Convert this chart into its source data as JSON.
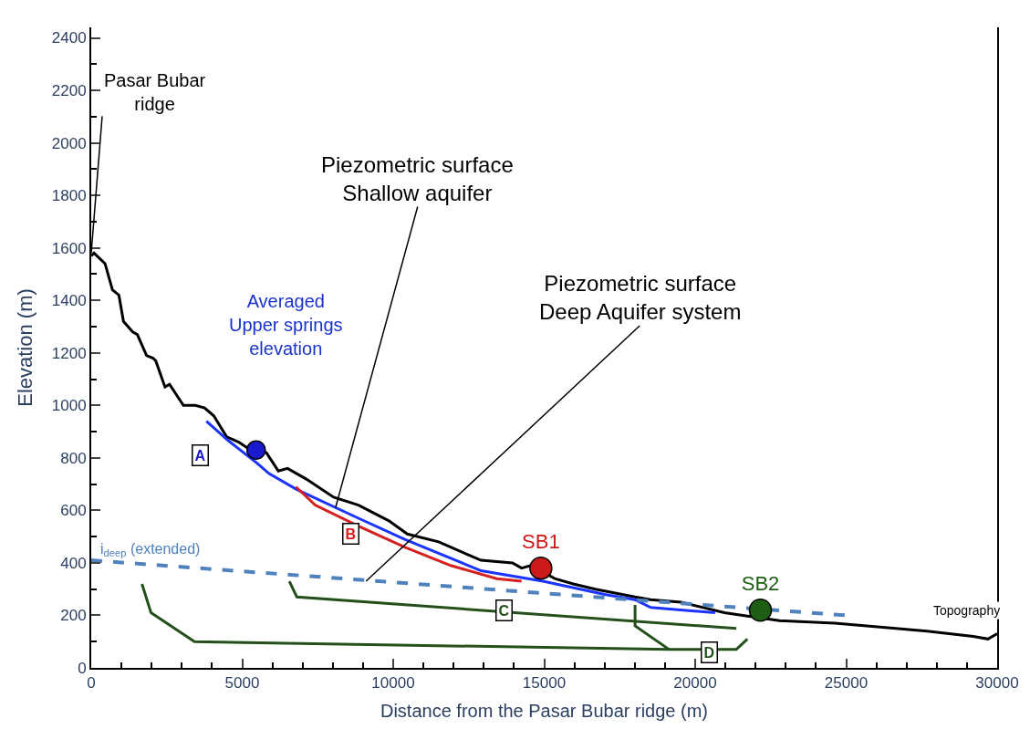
{
  "chart_data": {
    "type": "line",
    "xlabel": "Distance from the Pasar Bubar ridge (m)",
    "ylabel": "Elevation (m)",
    "xlim": [
      0,
      30000
    ],
    "xticks": [
      0,
      5000,
      10000,
      15000,
      20000,
      25000,
      30000
    ],
    "ylim": [
      0,
      2440
    ],
    "yticks": [
      0,
      200,
      400,
      600,
      800,
      1000,
      1200,
      1400,
      1600,
      1800,
      2000,
      2200,
      2400
    ],
    "legend": false,
    "line_style": "solid",
    "marker": "none",
    "series": [
      {
        "color": "#000000",
        "x": [
          0,
          92,
          458,
          702,
          916,
          1068,
          1373,
          1526,
          1831,
          2045,
          2136,
          2442,
          2594,
          3052,
          3449,
          3754,
          4059,
          4486,
          4883,
          5280,
          5799,
          6196,
          6501,
          7111,
          8027,
          8851,
          9858,
          10468,
          11506,
          12300,
          12910,
          13948,
          14253,
          14558,
          15352,
          15962,
          16694,
          18007,
          18525,
          19533,
          20967,
          21578,
          22798,
          24630,
          26644,
          27682,
          29208,
          29696,
          30000
        ],
        "values": [
          1570,
          1580,
          1540,
          1440,
          1420,
          1320,
          1280,
          1270,
          1190,
          1180,
          1170,
          1070,
          1080,
          1000,
          1000,
          990,
          960,
          880,
          860,
          830,
          820,
          750,
          760,
          720,
          650,
          620,
          560,
          510,
          480,
          440,
          410,
          400,
          380,
          390,
          340,
          320,
          300,
          270,
          260,
          250,
          210,
          200,
          180,
          170,
          150,
          140,
          120,
          110,
          130
        ]
      },
      {
        "color": "#1a33ff",
        "x": [
          3815,
          4490,
          5490,
          5890,
          6800,
          8850,
          10380,
          12910,
          14960,
          17000,
          18000,
          18530,
          20660
        ],
        "values": [
          940,
          870,
          780,
          740,
          680,
          570,
          490,
          370,
          330,
          280,
          260,
          230,
          210
        ]
      },
      {
        "color": "#d42020",
        "x": [
          6775,
          7416,
          8851,
          10377,
          11903,
          13430,
          14250
        ],
        "values": [
          690,
          620,
          540,
          460,
          390,
          340,
          330
        ]
      },
      {
        "color": "#4f81bd",
        "line_style": "dashed",
        "x": [
          0,
          25030
        ],
        "values": [
          410,
          200
        ]
      },
      {
        "color": "#23501a",
        "x": [
          6560,
          6810,
          21360
        ],
        "values": [
          330,
          270,
          150
        ]
      },
      {
        "color": "#23501a",
        "x": [
          1680,
          1980,
          3420,
          19140,
          21360,
          21730
        ],
        "values": [
          320,
          210,
          100,
          70,
          70,
          110
        ]
      },
      {
        "color": "#23501a",
        "x": [
          18010,
          18010,
          19140
        ],
        "values": [
          240,
          160,
          70
        ]
      },
      {
        "type": "scatter",
        "marker": "circle",
        "color": "#1a1acc",
        "x": [
          5460
        ],
        "values": [
          830
        ]
      },
      {
        "type": "scatter",
        "marker": "circle",
        "name": "SB1",
        "color": "#cc1a1a",
        "x": [
          14890
        ],
        "values": [
          380
        ]
      },
      {
        "type": "scatter",
        "marker": "circle",
        "name": "SB2",
        "color": "#1e5e14",
        "x": [
          22160
        ],
        "values": [
          220
        ]
      }
    ],
    "annotations": [
      {
        "text": "Pasar Bubar\nridge",
        "x": 0,
        "y": 1580
      },
      {
        "text": "Piezometric surface\nShallow aquifer",
        "x": 8090,
        "y": 610
      },
      {
        "text": "Piezometric surface\nDeep Aquifer system",
        "x": 9100,
        "y": 330
      },
      "Averaged\nUpper springs\nelevation",
      {
        "text": "i$_{deep}$ (extended)",
        "x": 0,
        "y": 410
      },
      {
        "text": "Topography",
        "x": 29000,
        "y": 130
      },
      {
        "text": "A",
        "x": 3600,
        "y": 810
      },
      {
        "text": "B",
        "x": 8610,
        "y": 510
      },
      {
        "text": "C",
        "x": 13670,
        "y": 220
      },
      {
        "text": "D",
        "x": 20480,
        "y": 60
      }
    ]
  }
}
